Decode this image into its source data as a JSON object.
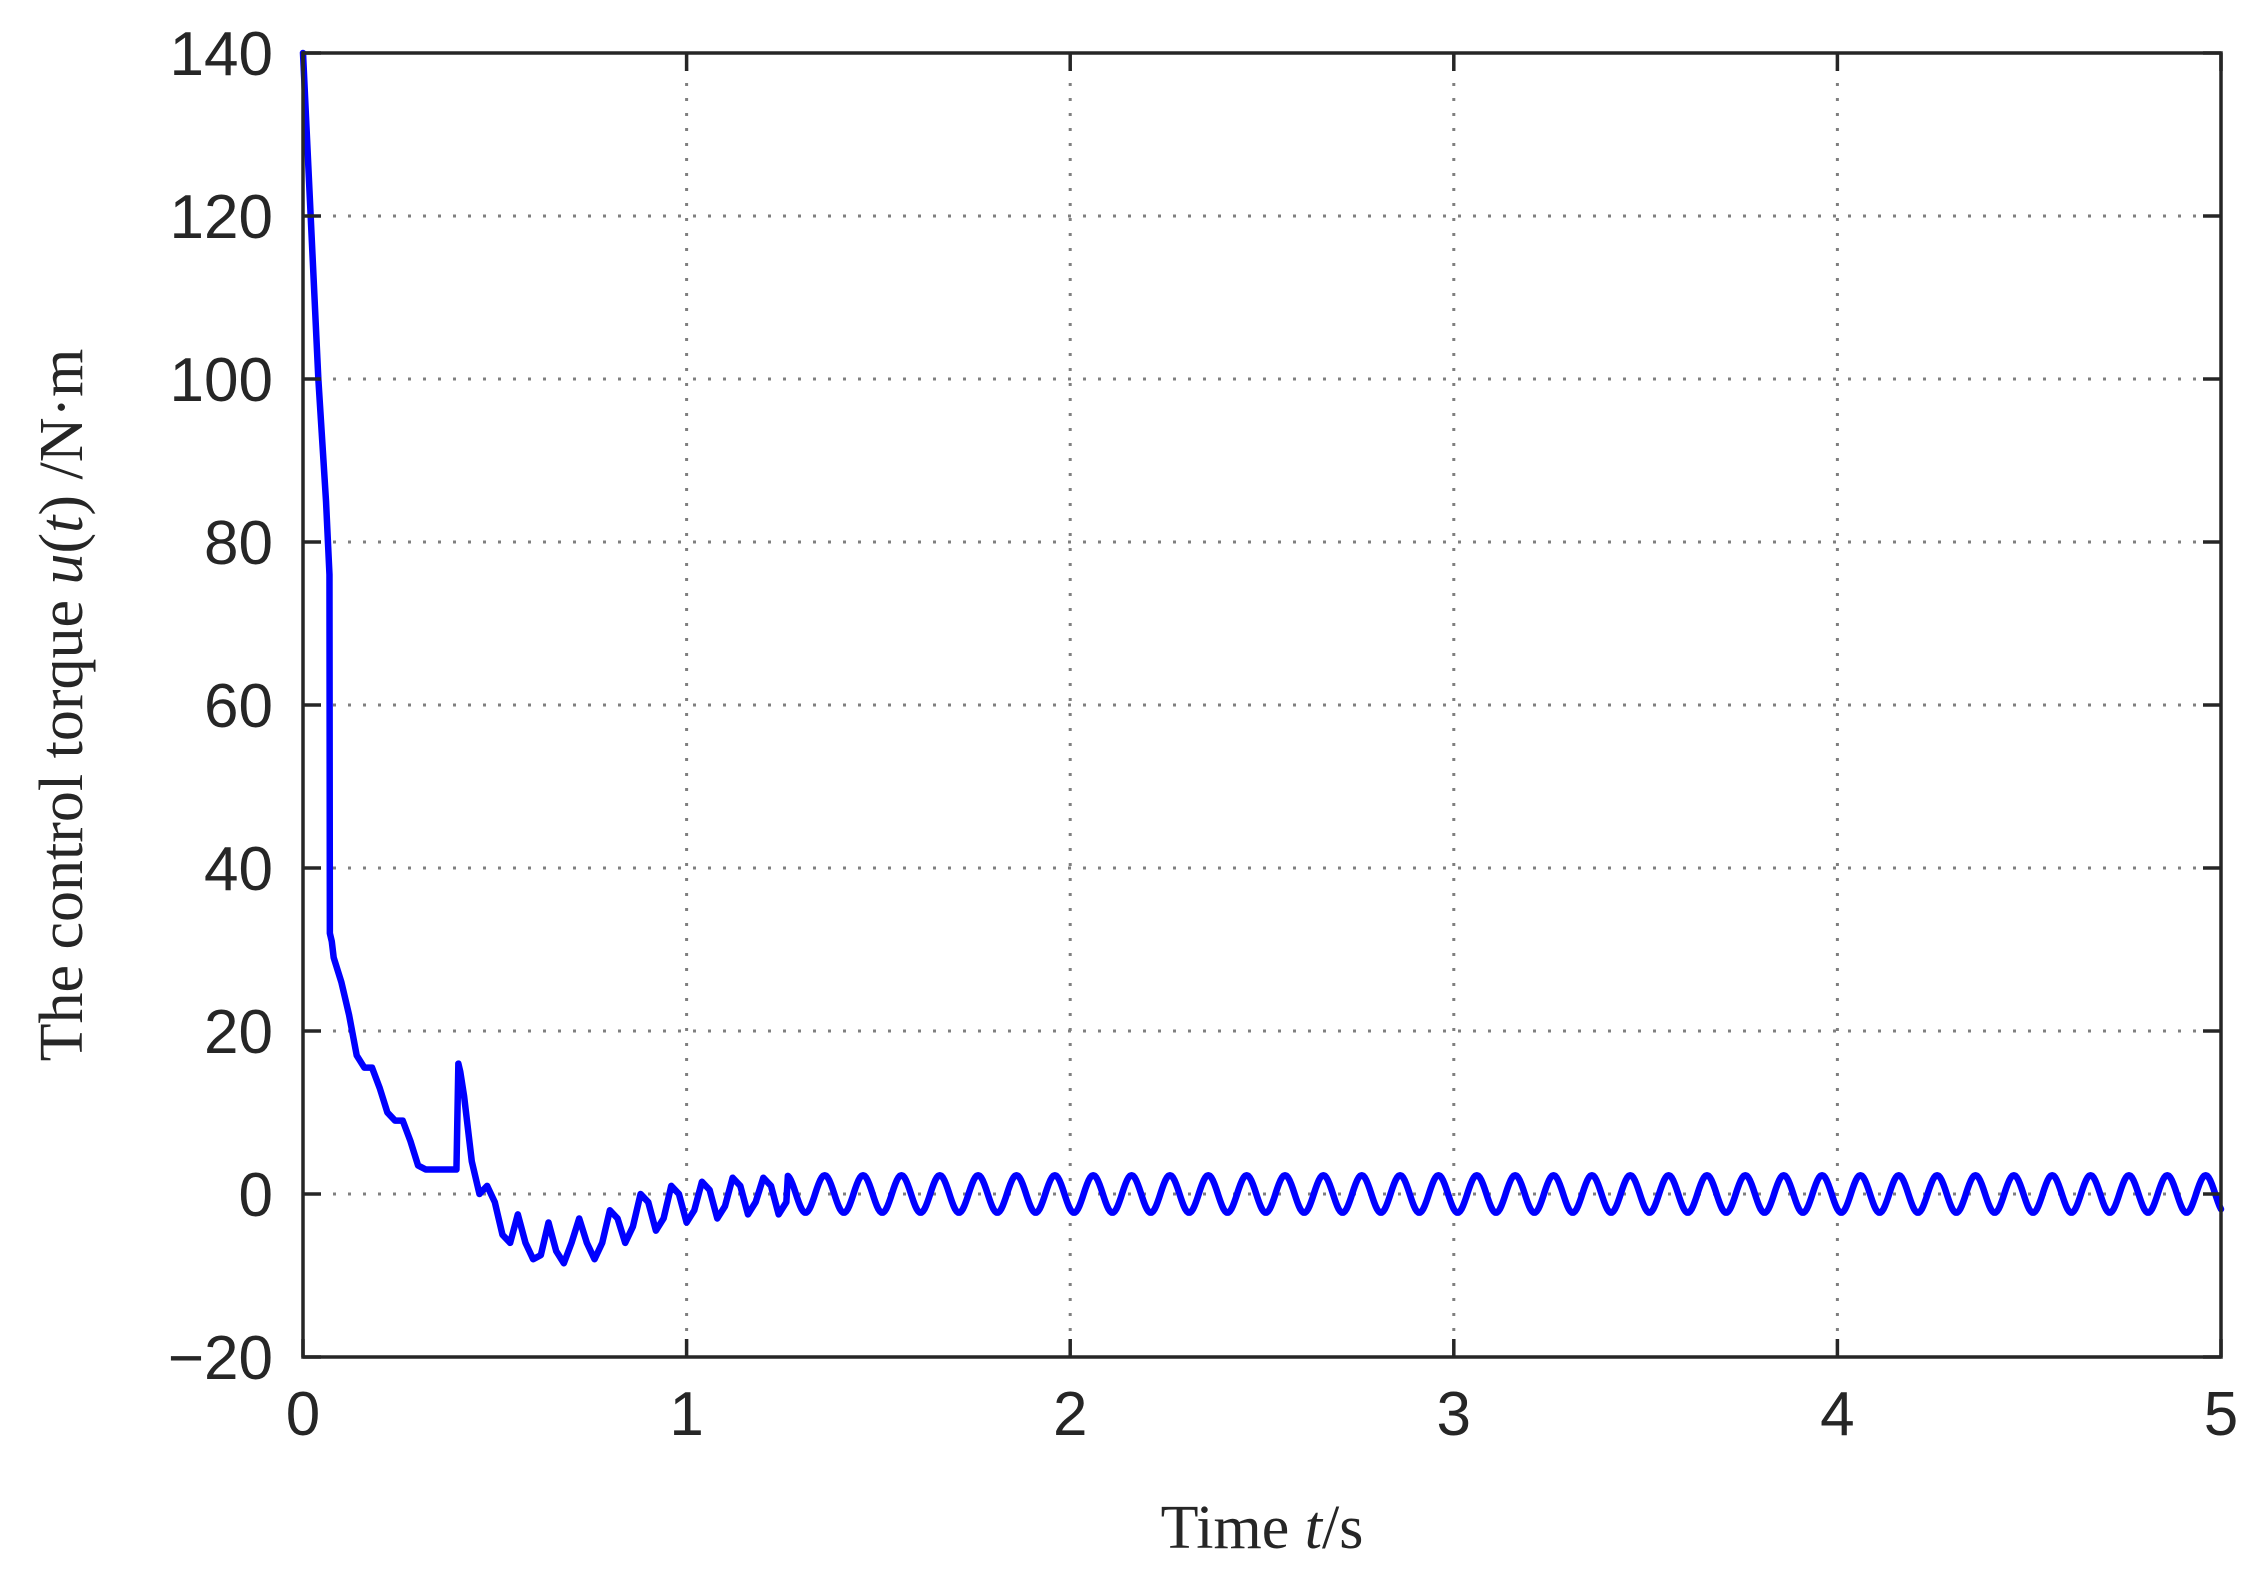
{
  "chart_data": {
    "type": "line",
    "xlabel": {
      "prefix": "Time ",
      "var": "t",
      "suffix": "/s"
    },
    "ylabel": {
      "prefix": "The control torque ",
      "var": "u",
      "mid": "(",
      "var2": "t",
      "suffix": ") /N·m"
    },
    "xlim": [
      0,
      5
    ],
    "ylim": [
      -20,
      140
    ],
    "xticks": [
      0,
      1,
      2,
      3,
      4,
      5
    ],
    "xtick_labels": [
      "0",
      "1",
      "2",
      "3",
      "4",
      "5"
    ],
    "yticks": [
      -20,
      0,
      20,
      40,
      60,
      80,
      100,
      120,
      140
    ],
    "ytick_labels": [
      "−20",
      "0",
      "20",
      "40",
      "60",
      "80",
      "100",
      "120",
      "140"
    ],
    "grid": true,
    "series": [
      {
        "color": "#0000ff",
        "x": [
          0,
          0.02,
          0.04,
          0.06,
          0.069,
          0.07,
          0.075,
          0.08,
          0.1,
          0.12,
          0.14,
          0.16,
          0.18,
          0.2,
          0.22,
          0.24,
          0.26,
          0.28,
          0.3,
          0.32,
          0.34,
          0.36,
          0.38,
          0.4,
          0.405,
          0.41,
          0.42,
          0.44,
          0.46,
          0.48,
          0.5,
          0.52,
          0.54,
          0.56,
          0.58,
          0.6,
          0.62,
          0.64,
          0.66,
          0.68,
          0.7,
          0.72,
          0.74,
          0.76,
          0.78,
          0.8,
          0.82,
          0.84,
          0.86,
          0.88,
          0.9,
          0.92,
          0.94,
          0.96,
          0.98,
          1.0,
          1.02,
          1.04,
          1.06,
          1.08,
          1.1,
          1.12,
          1.14,
          1.16,
          1.18,
          1.2,
          1.22,
          1.24,
          1.26
        ],
        "y": [
          140,
          120,
          100,
          85,
          76,
          32,
          31,
          29,
          26,
          22,
          17,
          15.5,
          15.5,
          13,
          10,
          9,
          9,
          6.5,
          3.5,
          3,
          3,
          3,
          3,
          3,
          16,
          15,
          12,
          4,
          0,
          1,
          -1,
          -5,
          -6,
          -2.5,
          -6,
          -8,
          -7.5,
          -3.5,
          -7,
          -8.5,
          -6,
          -3,
          -6,
          -8,
          -6,
          -2,
          -3,
          -6,
          -4,
          0,
          -1,
          -4.5,
          -3,
          1,
          0,
          -3.5,
          -2,
          1.5,
          0.5,
          -3,
          -1.5,
          2,
          1,
          -2.5,
          -1,
          2,
          1,
          -2.5,
          -1
        ]
      }
    ],
    "oscillation": {
      "x_start": 1.26,
      "x_end": 5,
      "period": 0.1,
      "amplitude": 2.3,
      "center": 0
    }
  }
}
